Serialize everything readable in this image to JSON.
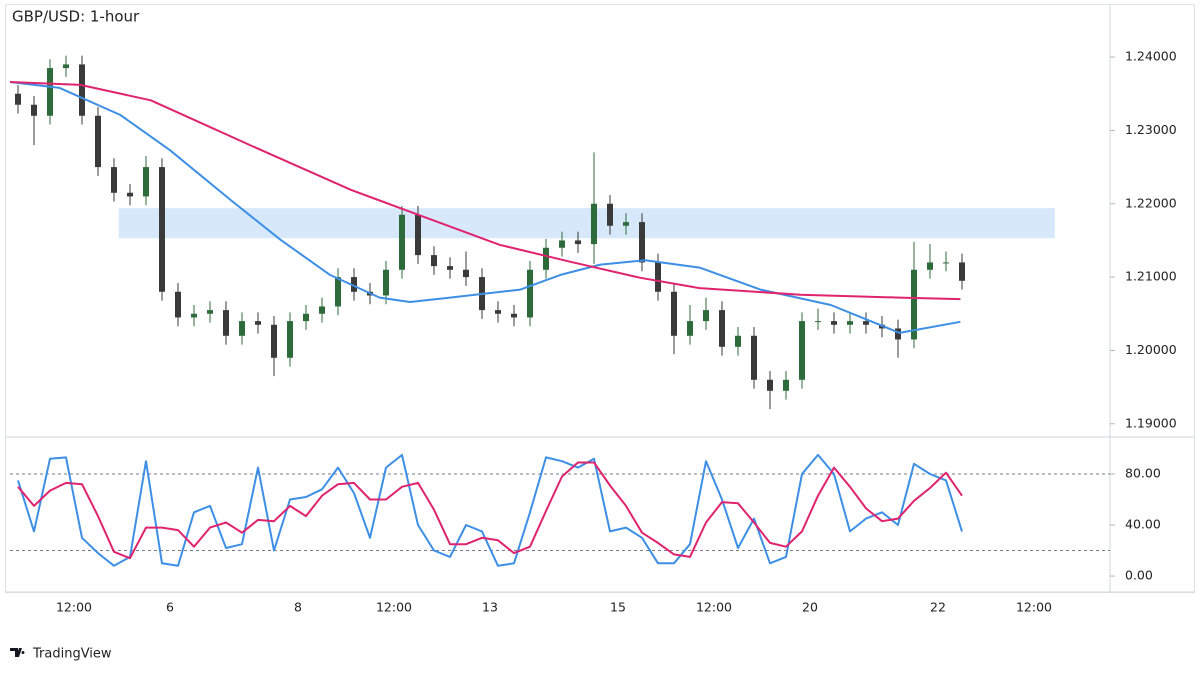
{
  "chart_data": [
    {
      "type": "candlestick",
      "title": "GBP/USD: 1-hour",
      "up_color": "#2e6b3a",
      "down_color": "#3a3a3a",
      "open": [
        1.235,
        1.2335,
        1.232,
        1.2385,
        1.239,
        1.232,
        1.225,
        1.2215,
        1.221,
        1.225,
        1.208,
        1.2045,
        1.205,
        1.2055,
        1.202,
        1.204,
        1.2035,
        1.199,
        1.204,
        1.205,
        1.206,
        1.21,
        1.208,
        1.2075,
        1.211,
        1.2185,
        1.213,
        1.2115,
        1.211,
        1.21,
        1.2055,
        1.205,
        1.2045,
        1.211,
        1.214,
        1.215,
        1.2145,
        1.22,
        1.217,
        1.2175,
        1.212,
        1.208,
        1.202,
        1.204,
        1.2055,
        1.2005,
        1.202,
        1.196,
        1.1945,
        1.196,
        1.204,
        1.204,
        1.2035,
        1.204,
        1.2035,
        1.203,
        1.2015,
        1.211,
        1.212,
        1.212
      ],
      "high": [
        1.2362,
        1.2347,
        1.2397,
        1.2402,
        1.2402,
        1.2332,
        1.2262,
        1.2227,
        1.2265,
        1.2262,
        1.2092,
        1.2062,
        1.2067,
        1.2067,
        1.2052,
        1.2052,
        1.2047,
        1.2052,
        1.2062,
        1.2072,
        1.2112,
        1.2112,
        1.2092,
        1.2122,
        1.2197,
        1.2197,
        1.2142,
        1.2127,
        1.2135,
        1.2112,
        1.2067,
        1.2062,
        1.2122,
        1.2152,
        1.2162,
        1.2162,
        1.227,
        1.2212,
        1.2187,
        1.2187,
        1.2132,
        1.2092,
        1.2062,
        1.2072,
        1.2067,
        1.2032,
        1.2032,
        1.1972,
        1.1972,
        1.2052,
        1.2057,
        1.2052,
        1.2052,
        1.2052,
        1.2047,
        1.2042,
        1.2148,
        1.2145,
        1.2135,
        1.2132
      ],
      "low": [
        1.2323,
        1.228,
        1.2308,
        1.2373,
        1.2308,
        1.2238,
        1.2203,
        1.2198,
        1.2198,
        1.2068,
        1.2033,
        1.2033,
        1.2038,
        1.2008,
        1.2008,
        1.2023,
        1.1965,
        1.1978,
        1.2028,
        1.2038,
        1.2048,
        1.2068,
        1.2063,
        1.2063,
        1.2098,
        1.2118,
        1.2103,
        1.2098,
        1.2088,
        1.2043,
        1.2038,
        1.2033,
        1.2033,
        1.2098,
        1.2128,
        1.2133,
        1.2118,
        1.2158,
        1.2158,
        1.2108,
        1.2068,
        1.1995,
        1.2008,
        1.2028,
        1.1993,
        1.1993,
        1.1948,
        1.192,
        1.1933,
        1.1948,
        1.2028,
        1.2023,
        1.2023,
        1.2023,
        1.2018,
        1.199,
        1.2003,
        1.2098,
        1.2108,
        1.2083
      ],
      "close": [
        1.2335,
        1.232,
        1.2385,
        1.239,
        1.232,
        1.225,
        1.2215,
        1.221,
        1.225,
        1.208,
        1.2045,
        1.205,
        1.2055,
        1.202,
        1.204,
        1.2035,
        1.199,
        1.204,
        1.205,
        1.206,
        1.21,
        1.208,
        1.2075,
        1.211,
        1.2185,
        1.213,
        1.2115,
        1.211,
        1.21,
        1.2055,
        1.205,
        1.2045,
        1.211,
        1.214,
        1.215,
        1.2145,
        1.22,
        1.217,
        1.2175,
        1.212,
        1.208,
        1.202,
        1.204,
        1.2055,
        1.2005,
        1.202,
        1.196,
        1.1945,
        1.196,
        1.204,
        1.204,
        1.2035,
        1.204,
        1.2035,
        1.203,
        1.2015,
        1.211,
        1.212,
        1.212,
        1.2095
      ],
      "series": [
        {
          "color": "#3d8fe6",
          "x": [
            0,
            3.1,
            6.9,
            10,
            13.8,
            16.9,
            20,
            23.1,
            25,
            27.5,
            31.9,
            34.4,
            36.9,
            39.7,
            43.1,
            46.9,
            51.3,
            55.6,
            59.4
          ],
          "values": [
            1.2366,
            1.2358,
            1.2321,
            1.2273,
            1.2205,
            1.2151,
            1.2103,
            1.2072,
            1.2066,
            1.2072,
            1.2083,
            1.2103,
            1.2117,
            1.2123,
            1.2113,
            1.2083,
            1.2062,
            1.2024,
            1.2039
          ]
        },
        {
          "color": "#e0236e",
          "x": [
            0,
            4.4,
            8.8,
            15,
            21.3,
            24.4,
            30.6,
            35,
            39.4,
            43.1,
            49.4,
            55.6,
            59.4
          ],
          "values": [
            1.2366,
            1.2362,
            1.2341,
            1.228,
            1.2219,
            1.2194,
            1.2144,
            1.2121,
            1.2099,
            1.2085,
            1.2076,
            1.2072,
            1.207
          ]
        }
      ],
      "zone": {
        "xlim": [
          6.8,
          65.3
        ],
        "ylim": [
          1.2153,
          1.2194
        ],
        "color": "#d6e8fa"
      },
      "xlim": [
        0,
        68.75
      ],
      "ylim": [
        1.1882,
        1.2471
      ],
      "yticks": [
        {
          "value": 1.19,
          "label": "1.19000"
        },
        {
          "value": 1.2,
          "label": "1.20000"
        },
        {
          "value": 1.21,
          "label": "1.21000"
        },
        {
          "value": 1.22,
          "label": "1.22000"
        },
        {
          "value": 1.23,
          "label": "1.23000"
        },
        {
          "value": 1.24,
          "label": "1.24000"
        }
      ]
    },
    {
      "type": "line",
      "series": [
        {
          "color": "#3d8fe6",
          "values": [
            75,
            35,
            92,
            93,
            30,
            18,
            8,
            15,
            90,
            10,
            8,
            50,
            55,
            22,
            25,
            85,
            20,
            60,
            62,
            68,
            85,
            65,
            30,
            85,
            95,
            40,
            20,
            15,
            40,
            35,
            8,
            10,
            50,
            93,
            90,
            85,
            92,
            35,
            38,
            30,
            10,
            10,
            25,
            90,
            60,
            22,
            45,
            10,
            15,
            80,
            95,
            80,
            35,
            45,
            50,
            40,
            88,
            80,
            75,
            35
          ]
        },
        {
          "color": "#e0236e",
          "values": [
            70,
            55,
            67,
            73,
            72,
            47,
            19,
            14,
            38,
            38,
            36,
            23,
            38,
            42,
            34,
            44,
            43,
            55,
            47,
            63,
            72,
            73,
            60,
            60,
            70,
            73,
            52,
            25,
            25,
            30,
            28,
            18,
            23,
            51,
            78,
            89,
            89,
            71,
            55,
            34,
            26,
            17,
            15,
            42,
            58,
            57,
            42,
            26,
            23,
            35,
            63,
            85,
            70,
            53,
            43,
            45,
            59,
            69,
            81,
            63
          ]
        }
      ],
      "levels": [
        20,
        80
      ],
      "xlim": [
        0,
        68.75
      ],
      "ylim": [
        -12.5,
        109
      ],
      "yticks": [
        {
          "value": 0,
          "label": "0.00"
        },
        {
          "value": 40,
          "label": "40.00"
        },
        {
          "value": 80,
          "label": "80.00"
        }
      ],
      "xticks": [
        {
          "value": 4,
          "label": "12:00"
        },
        {
          "value": 10,
          "label": "6"
        },
        {
          "value": 18,
          "label": "8"
        },
        {
          "value": 24,
          "label": "12:00"
        },
        {
          "value": 30,
          "label": "13"
        },
        {
          "value": 38,
          "label": "15"
        },
        {
          "value": 44,
          "label": "12:00"
        },
        {
          "value": 50,
          "label": "20"
        },
        {
          "value": 58,
          "label": "22"
        },
        {
          "value": 64,
          "label": "12:00"
        }
      ]
    }
  ],
  "footer": "TradingView"
}
